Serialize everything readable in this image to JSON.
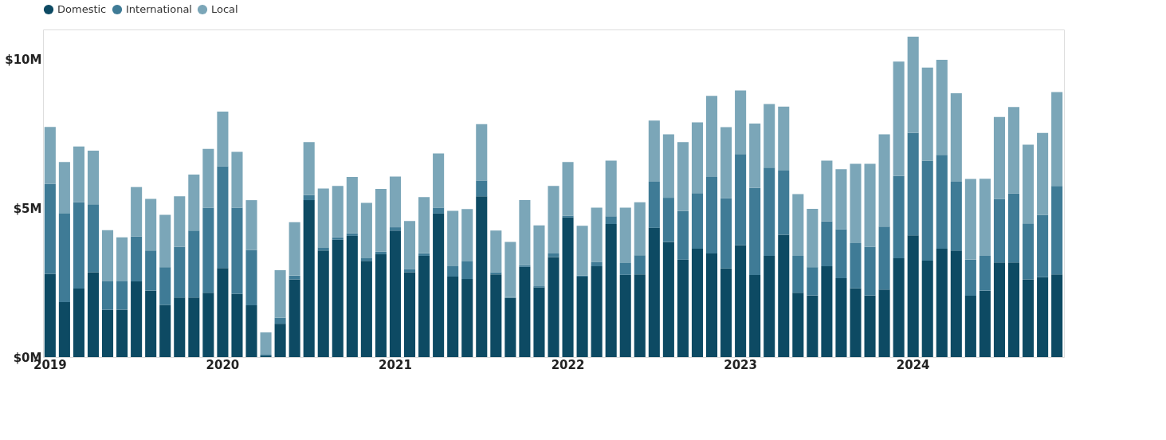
{
  "chart_data": {
    "type": "bar",
    "stacked": true,
    "legend": "top",
    "grid": false,
    "categories": [
      "2019",
      null,
      null,
      null,
      null,
      null,
      null,
      null,
      null,
      null,
      null,
      null,
      "2020",
      null,
      null,
      null,
      null,
      null,
      null,
      null,
      null,
      null,
      null,
      null,
      "2021",
      null,
      null,
      null,
      null,
      null,
      null,
      null,
      null,
      null,
      null,
      null,
      "2022",
      null,
      null,
      null,
      null,
      null,
      null,
      null,
      null,
      null,
      null,
      null,
      "2023",
      null,
      null,
      null,
      null,
      null,
      null,
      null,
      null,
      null,
      null,
      null,
      "2024",
      null,
      null,
      null,
      null,
      null,
      null,
      null,
      null,
      null,
      null
    ],
    "ylim": [
      0,
      11
    ],
    "yticks": [
      {
        "value": 0,
        "label": "$0M"
      },
      {
        "value": 5,
        "label": "$5M"
      },
      {
        "value": 10,
        "label": "$10M"
      }
    ],
    "series": [
      {
        "name": "Domestic",
        "color": "#0d4a63",
        "values": [
          2.8,
          1.85,
          2.3,
          2.85,
          1.59,
          1.59,
          2.54,
          2.23,
          1.75,
          2.0,
          2.0,
          2.16,
          2.99,
          2.12,
          1.74,
          0.05,
          1.12,
          2.61,
          5.27,
          3.58,
          3.94,
          4.07,
          3.23,
          3.45,
          4.25,
          2.85,
          3.4,
          4.82,
          2.7,
          2.62,
          5.4,
          2.78,
          1.99,
          3.03,
          2.34,
          3.36,
          4.69,
          2.7,
          3.05,
          4.47,
          2.76,
          2.78,
          4.34,
          3.87,
          3.27,
          3.64,
          3.48,
          2.98,
          3.76,
          2.76,
          3.4,
          4.11,
          2.16,
          2.07,
          3.05,
          2.65,
          2.31,
          2.07,
          2.27,
          3.32,
          4.09,
          3.24,
          3.64,
          3.58,
          2.06,
          2.23,
          3.18,
          3.18,
          2.61,
          2.68,
          2.78
        ]
      },
      {
        "name": "International",
        "color": "#3f7b96",
        "values": [
          3.02,
          2.97,
          2.9,
          2.28,
          0.97,
          0.95,
          1.51,
          1.35,
          1.27,
          1.71,
          2.25,
          2.86,
          3.41,
          2.9,
          1.86,
          0.03,
          0.2,
          0.13,
          0.17,
          0.09,
          0.08,
          0.09,
          0.09,
          0.09,
          0.11,
          0.11,
          0.09,
          0.2,
          0.35,
          0.61,
          0.53,
          0.07,
          0.03,
          0.06,
          0.04,
          0.12,
          0.06,
          0.04,
          0.15,
          0.26,
          0.4,
          0.64,
          1.55,
          1.48,
          1.64,
          1.87,
          2.57,
          2.36,
          3.06,
          2.92,
          2.96,
          2.15,
          1.24,
          0.95,
          1.51,
          1.64,
          1.52,
          1.63,
          2.11,
          2.76,
          3.44,
          3.36,
          3.15,
          2.31,
          1.21,
          1.17,
          2.13,
          2.31,
          1.88,
          2.1,
          2.97
        ]
      },
      {
        "name": "Local",
        "color": "#7ba6b8",
        "values": [
          1.91,
          1.73,
          1.87,
          1.8,
          1.7,
          1.48,
          1.66,
          1.73,
          1.76,
          1.69,
          1.88,
          1.97,
          1.84,
          1.87,
          1.67,
          0.75,
          1.6,
          1.79,
          1.78,
          1.99,
          1.73,
          1.89,
          1.86,
          2.11,
          1.7,
          1.61,
          1.88,
          1.82,
          1.86,
          1.74,
          1.89,
          1.4,
          1.85,
          2.18,
          2.04,
          2.27,
          1.8,
          1.67,
          1.82,
          1.87,
          1.86,
          1.78,
          2.05,
          2.13,
          2.31,
          2.37,
          2.72,
          2.38,
          2.13,
          2.16,
          2.14,
          2.15,
          2.07,
          1.96,
          2.04,
          2.02,
          2.66,
          2.79,
          3.1,
          3.84,
          3.23,
          3.12,
          3.19,
          2.97,
          2.71,
          2.59,
          2.75,
          2.91,
          2.64,
          2.75,
          3.15
        ]
      }
    ]
  }
}
